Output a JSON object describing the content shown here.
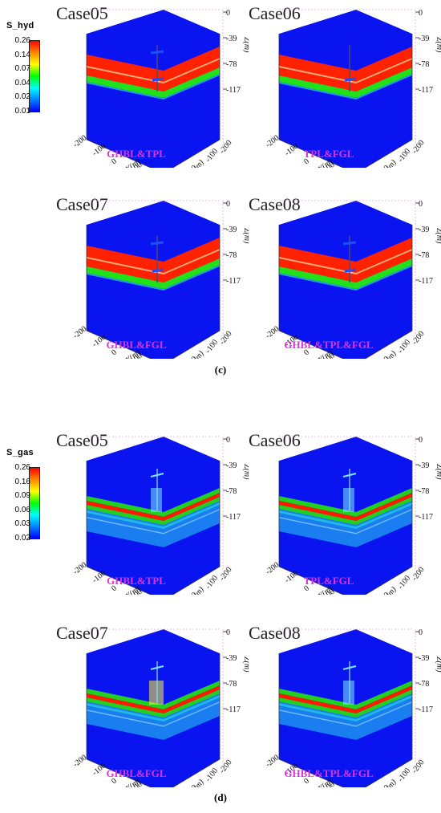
{
  "figures": [
    {
      "label": "(c)",
      "legend": {
        "title": "S_hyd",
        "ticks": [
          "0.26",
          "0.14",
          "0.07",
          "0.04",
          "0.02",
          "0.01"
        ]
      },
      "panels": [
        {
          "title": "Case05",
          "scheme": "GHBL&TPL"
        },
        {
          "title": "Case06",
          "scheme": "TPL&FGL"
        },
        {
          "title": "Case07",
          "scheme": "GHBL&FGL"
        },
        {
          "title": "Case08",
          "scheme": "GHBL&TPL&FGL"
        }
      ]
    },
    {
      "label": "(d)",
      "legend": {
        "title": "S_gas",
        "ticks": [
          "0.26",
          "0.16",
          "0.09",
          "0.06",
          "0.03",
          "0.02"
        ]
      },
      "panels": [
        {
          "title": "Case05",
          "scheme": "GHBL&TPL"
        },
        {
          "title": "Case06",
          "scheme": "TPL&FGL"
        },
        {
          "title": "Case07",
          "scheme": "GHBL&FGL"
        },
        {
          "title": "Case08",
          "scheme": "GHBL&TPL&FGL"
        }
      ]
    }
  ],
  "axes": {
    "z_ticks": [
      "0",
      "-39",
      "-78",
      "-117"
    ],
    "z_label": "Z(m)",
    "y_ticks": [
      "-200",
      "-100",
      "0",
      "100",
      "200"
    ],
    "y_label": "Y(m)",
    "x_ticks": [
      "200",
      "100",
      "0",
      "-100",
      "-200"
    ],
    "x_label": "X(m)"
  },
  "colors": {
    "background_blue": "#0a14f0",
    "hyd_red": "#ff2200",
    "hyd_orange": "#ff6600",
    "hyd_green": "#22e01a",
    "gas_red": "#ff1a00",
    "gas_green": "#22d020",
    "gas_cyan": "#2ad6f0",
    "scheme_text": "#dd33dd",
    "colormap": [
      "#ff0000",
      "#ff8800",
      "#ffff00",
      "#00ff00",
      "#00ffff",
      "#0080ff",
      "#0000ff"
    ]
  }
}
